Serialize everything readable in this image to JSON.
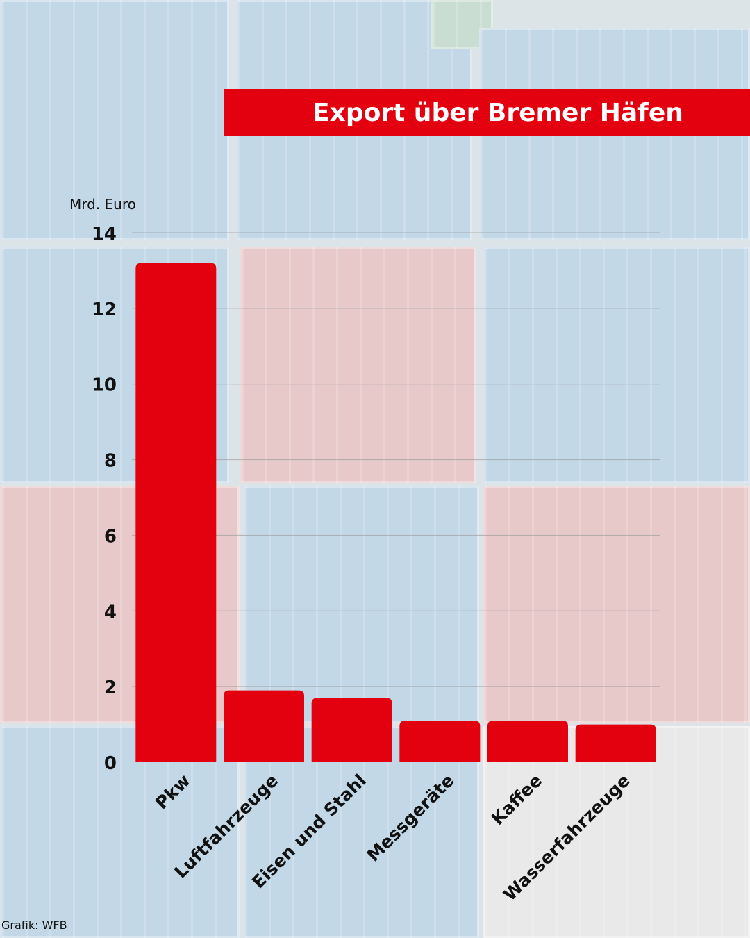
{
  "title": "Export über Bremer Häfen",
  "credit": "Grafik: WFB",
  "colors": {
    "bar": "#e3000f",
    "title_bg": "#e3000f",
    "grid": "#9a9a9a"
  },
  "chart_data": {
    "type": "bar",
    "title": "Export über Bremer Häfen",
    "ylabel": "Mrd. Euro",
    "xlabel": "",
    "categories": [
      "Pkw",
      "Luftfahrzeuge",
      "Eisen und Stahl",
      "Messgeräte",
      "Kaffee",
      "Wasserfahrzeuge"
    ],
    "values": [
      13.2,
      1.9,
      1.7,
      1.1,
      1.1,
      1.0
    ],
    "ylim": [
      0,
      14
    ],
    "yticks": [
      0,
      2,
      4,
      6,
      8,
      10,
      12,
      14
    ],
    "grid": true,
    "legend": "none"
  }
}
